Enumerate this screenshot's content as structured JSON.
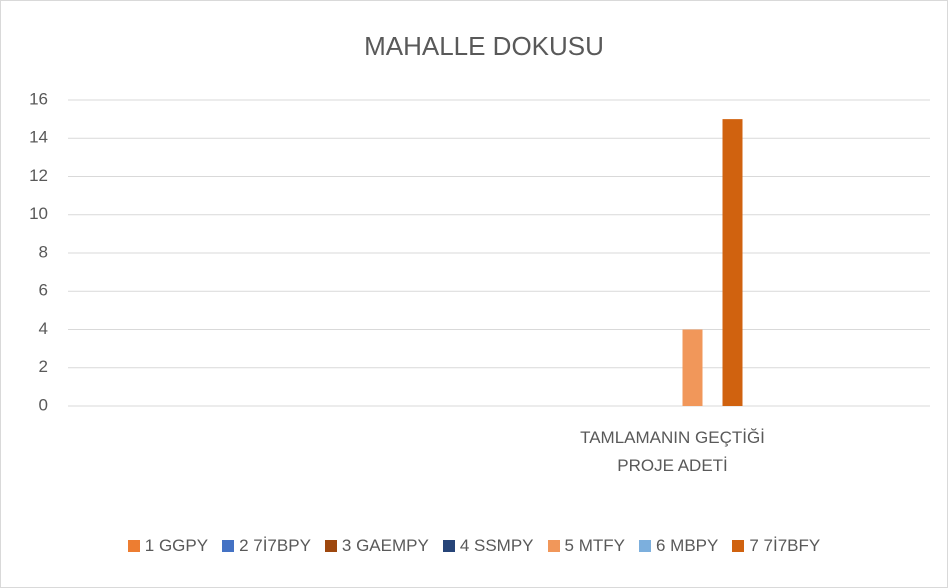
{
  "chart_data": {
    "type": "bar",
    "title": "MAHALLE DOKUSU",
    "categories": [
      null,
      "TAMLAMANIN GEÇTİĞİ PROJE ADETİ"
    ],
    "series": [
      {
        "name": "1 GGPY",
        "color": "#ed7d31",
        "values": [
          0,
          0
        ]
      },
      {
        "name": "2 7İ7BPY",
        "color": "#4472c4",
        "values": [
          0,
          0
        ]
      },
      {
        "name": "3 GAEMPY",
        "color": "#9e480e",
        "values": [
          0,
          0
        ]
      },
      {
        "name": "4 SSMPY",
        "color": "#264478",
        "values": [
          0,
          0
        ]
      },
      {
        "name": "5 MTFY",
        "color": "#f1975a",
        "values": [
          0,
          4
        ]
      },
      {
        "name": "6 MBPY",
        "color": "#7cafdd",
        "values": [
          0,
          0
        ]
      },
      {
        "name": "7 7İ7BFY",
        "color": "#d0620f",
        "values": [
          0,
          15
        ]
      }
    ],
    "ylim": [
      0,
      16
    ],
    "yticks": [
      0,
      2,
      4,
      6,
      8,
      10,
      12,
      14,
      16
    ],
    "grid": true,
    "legend": "bottom"
  }
}
